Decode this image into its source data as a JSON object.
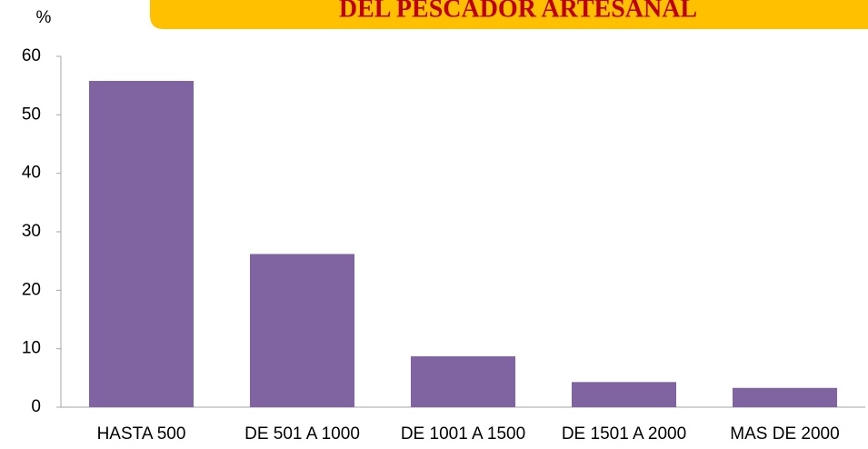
{
  "chart_data": {
    "type": "bar",
    "title": "DEL PESCADOR ARTESANAL",
    "y_label": "%",
    "categories": [
      "HASTA 500",
      "DE 501 A 1000",
      "DE 1001 A 1500",
      "DE 1501 A 2000",
      "MAS DE 2000"
    ],
    "values": [
      55.8,
      26.2,
      8.7,
      4.3,
      3.3
    ],
    "color": "#8064a2",
    "ylim": [
      0,
      60
    ],
    "yticks": [
      0,
      10,
      20,
      30,
      40,
      50,
      60
    ],
    "grid": false
  }
}
